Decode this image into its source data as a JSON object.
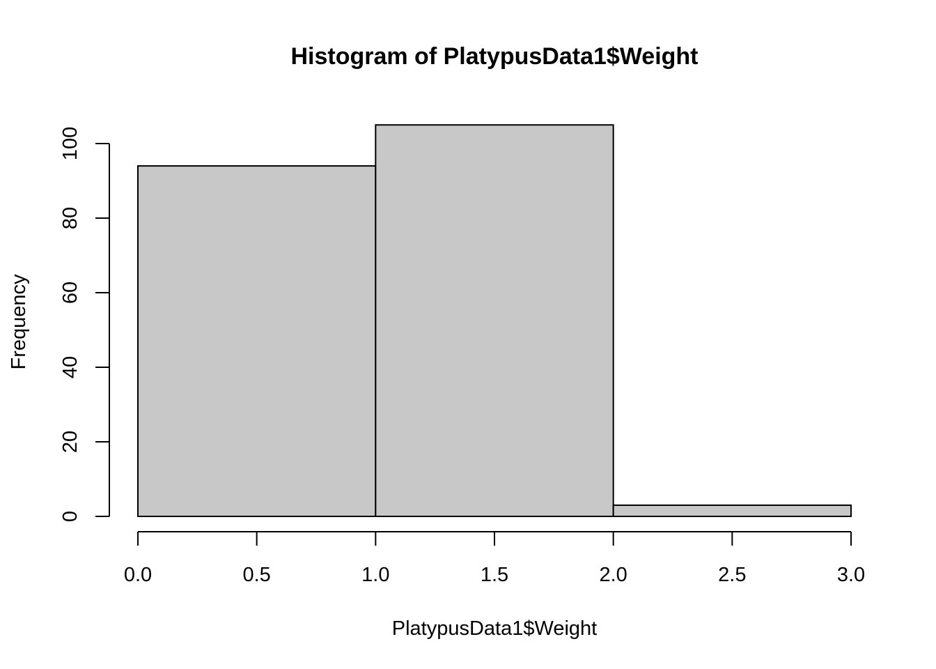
{
  "chart_data": {
    "type": "bar",
    "title": "Histogram of PlatypusData1$Weight",
    "xlabel": "PlatypusData1$Weight",
    "ylabel": "Frequency",
    "bins": [
      {
        "x0": 0.0,
        "x1": 1.0,
        "count": 94
      },
      {
        "x0": 1.0,
        "x1": 2.0,
        "count": 105
      },
      {
        "x0": 2.0,
        "x1": 3.0,
        "count": 3
      }
    ],
    "xlim": [
      0,
      3
    ],
    "ylim": [
      0,
      105
    ],
    "x_ticks": [
      0.0,
      0.5,
      1.0,
      1.5,
      2.0,
      2.5,
      3.0
    ],
    "x_tick_labels": [
      "0.0",
      "0.5",
      "1.0",
      "1.5",
      "2.0",
      "2.5",
      "3.0"
    ],
    "y_ticks": [
      0,
      20,
      40,
      60,
      80,
      100
    ],
    "y_tick_labels": [
      "0",
      "20",
      "40",
      "60",
      "80",
      "100"
    ],
    "bar_color": "#c8c8c8",
    "bar_border_color": "#000000",
    "grid": false,
    "legend": "none"
  }
}
